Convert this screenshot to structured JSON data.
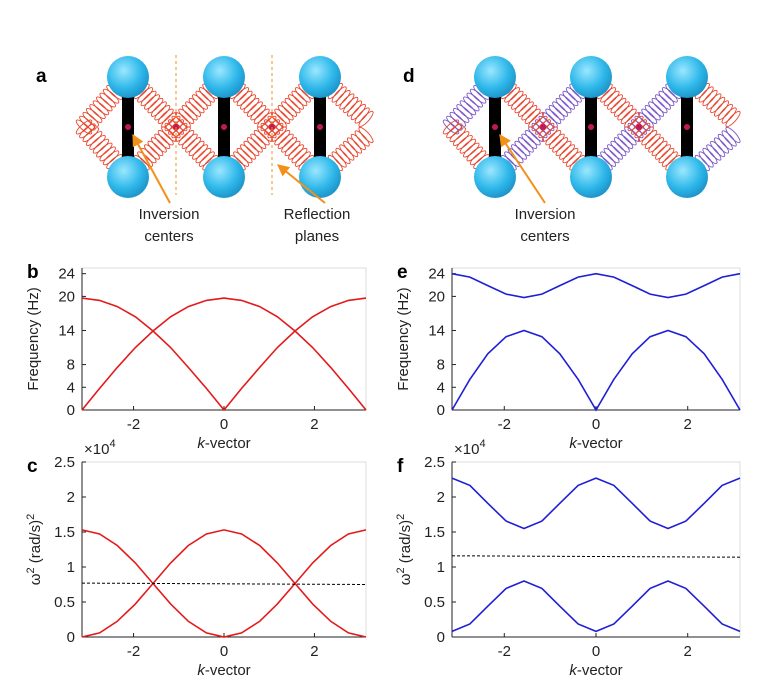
{
  "schematics": [
    {
      "panel": "a",
      "labels": [
        [
          "Inversion",
          "centers"
        ],
        [
          "Reflection",
          "planes"
        ]
      ]
    },
    {
      "panel": "d",
      "labels": [
        [
          "Inversion",
          "centers"
        ]
      ]
    }
  ],
  "chart_data": [
    {
      "type": "line",
      "panel": "b",
      "ylabel": [
        "Frequency (Hz)"
      ],
      "xlabel": [
        "k",
        "-vector"
      ],
      "x": [
        -3.14,
        -2.75,
        -2.36,
        -1.96,
        -1.57,
        -1.18,
        -0.79,
        -0.39,
        0,
        0.39,
        0.79,
        1.18,
        1.57,
        1.96,
        2.36,
        2.75,
        3.14
      ],
      "series": [
        {
          "color": "#e31a1c",
          "values": [
            19.7,
            19.3,
            18.2,
            16.4,
            13.9,
            11.0,
            7.5,
            3.8,
            0,
            3.8,
            7.5,
            11.0,
            13.9,
            16.4,
            18.2,
            19.3,
            19.7
          ]
        },
        {
          "color": "#e31a1c",
          "values": [
            0,
            3.8,
            7.5,
            11.0,
            13.9,
            16.4,
            18.2,
            19.3,
            19.7,
            19.3,
            18.2,
            16.4,
            13.9,
            11.0,
            7.5,
            3.8,
            0
          ]
        }
      ],
      "xlim": [
        -3.14,
        3.14
      ],
      "ylim": [
        0,
        25
      ],
      "xticks": [
        -2,
        0,
        2
      ],
      "yticks": [
        0,
        4,
        8,
        14,
        20,
        24
      ]
    },
    {
      "type": "line",
      "panel": "e",
      "ylabel": [
        "Frequency (Hz)"
      ],
      "xlabel": [
        "k",
        "-vector"
      ],
      "x": [
        -3.14,
        -2.75,
        -2.36,
        -1.96,
        -1.57,
        -1.18,
        -0.79,
        -0.39,
        0,
        0.39,
        0.79,
        1.18,
        1.57,
        1.96,
        2.36,
        2.75,
        3.14
      ],
      "series": [
        {
          "color": "#1f1fd6",
          "values": [
            0,
            5.4,
            9.9,
            12.9,
            14,
            12.9,
            9.9,
            5.4,
            0,
            5.4,
            9.9,
            12.9,
            14,
            12.9,
            9.9,
            5.4,
            0
          ]
        },
        {
          "color": "#1f1fd6",
          "values": [
            24,
            23.4,
            21.9,
            20.4,
            19.8,
            20.4,
            21.9,
            23.4,
            24,
            23.4,
            21.9,
            20.4,
            19.8,
            20.4,
            21.9,
            23.4,
            24
          ]
        }
      ],
      "xlim": [
        -3.14,
        3.14
      ],
      "ylim": [
        0,
        25
      ],
      "xticks": [
        -2,
        0,
        2
      ],
      "yticks": [
        0,
        4,
        8,
        14,
        20,
        24
      ]
    },
    {
      "type": "line",
      "panel": "c",
      "ylabel": [
        "ω",
        "2",
        " (rad/s)",
        "2"
      ],
      "xlabel": [
        "k",
        "-vector"
      ],
      "multiplier": [
        "×10",
        "4"
      ],
      "x": [
        -3.14,
        -2.75,
        -2.36,
        -1.96,
        -1.57,
        -1.18,
        -0.79,
        -0.39,
        0,
        0.39,
        0.79,
        1.18,
        1.57,
        1.96,
        2.36,
        2.75,
        3.14
      ],
      "series": [
        {
          "color": "#e31a1c",
          "values": [
            15300,
            14720,
            13070,
            10570,
            7650,
            4730,
            2240,
            580,
            0,
            580,
            2240,
            4730,
            7650,
            10570,
            13070,
            14720,
            15300
          ]
        },
        {
          "color": "#e31a1c",
          "values": [
            0,
            580,
            2240,
            4730,
            7650,
            10570,
            13070,
            14720,
            15300,
            14720,
            13070,
            10570,
            7650,
            4730,
            2240,
            580,
            0
          ]
        },
        {
          "color": "#000000",
          "dashed": true,
          "x": [
            -3.14,
            3.14
          ],
          "values": [
            7700,
            7500
          ]
        }
      ],
      "xlim": [
        -3.14,
        3.14
      ],
      "ylim": [
        0,
        25000
      ],
      "xticks": [
        -2,
        0,
        2
      ],
      "yticks": [
        0,
        {
          "value": 5000,
          "label": "0.5"
        },
        {
          "value": 10000,
          "label": "1"
        },
        {
          "value": 15000,
          "label": "1.5"
        },
        {
          "value": 20000,
          "label": "2"
        },
        {
          "value": 25000,
          "label": "2.5"
        }
      ]
    },
    {
      "type": "line",
      "panel": "f",
      "ylabel": [
        "ω",
        "2",
        " (rad/s)",
        "2"
      ],
      "xlabel": [
        "k",
        "-vector"
      ],
      "multiplier": [
        "×10",
        "4"
      ],
      "x": [
        -3.14,
        -2.75,
        -2.36,
        -1.96,
        -1.57,
        -1.18,
        -0.79,
        -0.39,
        0,
        0.39,
        0.79,
        1.18,
        1.57,
        1.96,
        2.36,
        2.75,
        3.14
      ],
      "series": [
        {
          "color": "#1f1fd6",
          "values": [
            22700,
            21650,
            19100,
            16550,
            15500,
            16550,
            19100,
            21650,
            22700,
            21650,
            19100,
            16550,
            15500,
            16550,
            19100,
            21650,
            22700
          ]
        },
        {
          "color": "#1f1fd6",
          "values": [
            800,
            1850,
            4400,
            6950,
            8000,
            6950,
            4400,
            1850,
            800,
            1850,
            4400,
            6950,
            8000,
            6950,
            4400,
            1850,
            800
          ]
        },
        {
          "color": "#000000",
          "dashed": true,
          "x": [
            -3.14,
            3.14
          ],
          "values": [
            11600,
            11400
          ]
        }
      ],
      "xlim": [
        -3.14,
        3.14
      ],
      "ylim": [
        0,
        25000
      ],
      "xticks": [
        -2,
        0,
        2
      ],
      "yticks": [
        0,
        {
          "value": 5000,
          "label": "0.5"
        },
        {
          "value": 10000,
          "label": "1"
        },
        {
          "value": 15000,
          "label": "1.5"
        },
        {
          "value": 20000,
          "label": "2"
        },
        {
          "value": 25000,
          "label": "2.5"
        }
      ]
    }
  ]
}
